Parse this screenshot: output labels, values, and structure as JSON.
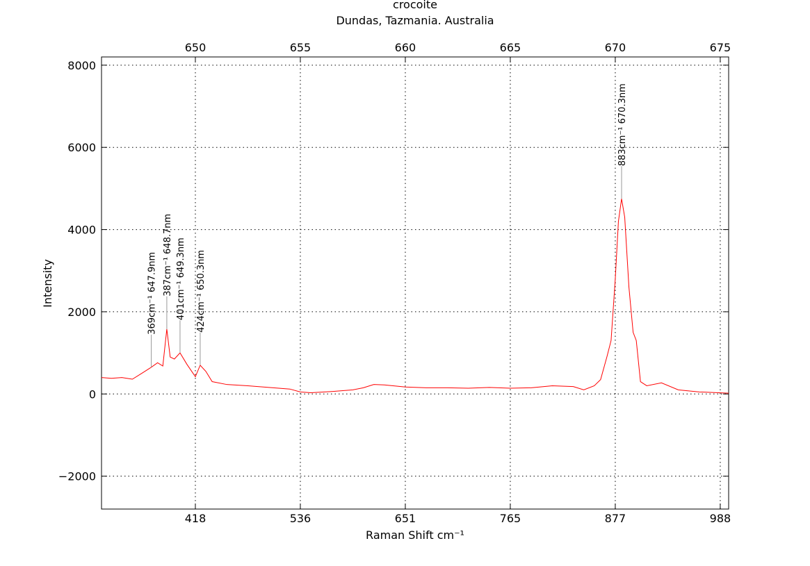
{
  "chart_data": {
    "type": "line",
    "title": [
      "crocoite",
      "Dundas, Tazmania. Australia"
    ],
    "xlabel": "Raman Shift cm⁻¹",
    "ylabel": "Intensity",
    "xlim": [
      645.53,
      675.4
    ],
    "ylim": [
      -2800,
      8200
    ],
    "xticks": [
      {
        "value": 650,
        "label": "418"
      },
      {
        "value": 655,
        "label": "536"
      },
      {
        "value": 660,
        "label": "651"
      },
      {
        "value": 665,
        "label": "765"
      },
      {
        "value": 670,
        "label": "877"
      },
      {
        "value": 675,
        "label": "988"
      }
    ],
    "x2ticks": [
      650,
      655,
      660,
      665,
      670,
      675
    ],
    "yticks": [
      {
        "value": -2000,
        "label": "−2000"
      },
      0,
      2000,
      4000,
      6000,
      8000
    ],
    "grid": true,
    "series": [
      {
        "color": "#ff0000",
        "x": [
          645.53,
          646.0,
          646.5,
          647.0,
          647.5,
          647.9,
          648.2,
          648.45,
          648.64,
          648.8,
          649.0,
          649.27,
          649.6,
          650.0,
          650.23,
          650.5,
          650.8,
          651.5,
          652.5,
          653.5,
          654.5,
          655.0,
          655.5,
          656.5,
          657.5,
          658.0,
          658.5,
          659.0,
          660.0,
          661.0,
          662.0,
          663.0,
          664.0,
          665.0,
          666.0,
          667.0,
          668.0,
          668.5,
          669.0,
          669.3,
          669.6,
          669.8,
          670.0,
          670.15,
          670.3,
          670.45,
          670.65,
          670.85,
          671.0,
          671.2,
          671.5,
          672.2,
          673.0,
          674.0,
          675.4
        ],
        "values": [
          400,
          380,
          400,
          360,
          520,
          650,
          760,
          680,
          1580,
          900,
          850,
          1000,
          720,
          420,
          700,
          550,
          300,
          230,
          200,
          160,
          120,
          50,
          30,
          60,
          100,
          150,
          230,
          220,
          170,
          150,
          150,
          140,
          160,
          140,
          150,
          200,
          180,
          100,
          200,
          350,
          900,
          1300,
          2800,
          4200,
          4750,
          4300,
          2600,
          1500,
          1300,
          300,
          200,
          270,
          100,
          50,
          20
        ]
      }
    ],
    "annotations": [
      {
        "x": 647.9,
        "y": 650,
        "label": "369cm⁻¹ 647.9nm"
      },
      {
        "x": 648.64,
        "y": 1580,
        "label": "387cm⁻¹ 648.7nm"
      },
      {
        "x": 649.27,
        "y": 1000,
        "label": "401cm⁻¹ 649.3nm"
      },
      {
        "x": 650.23,
        "y": 700,
        "label": "424cm⁻¹ 650.3nm"
      },
      {
        "x": 670.3,
        "y": 4750,
        "label": "883cm⁻¹ 670.3nm"
      }
    ]
  }
}
